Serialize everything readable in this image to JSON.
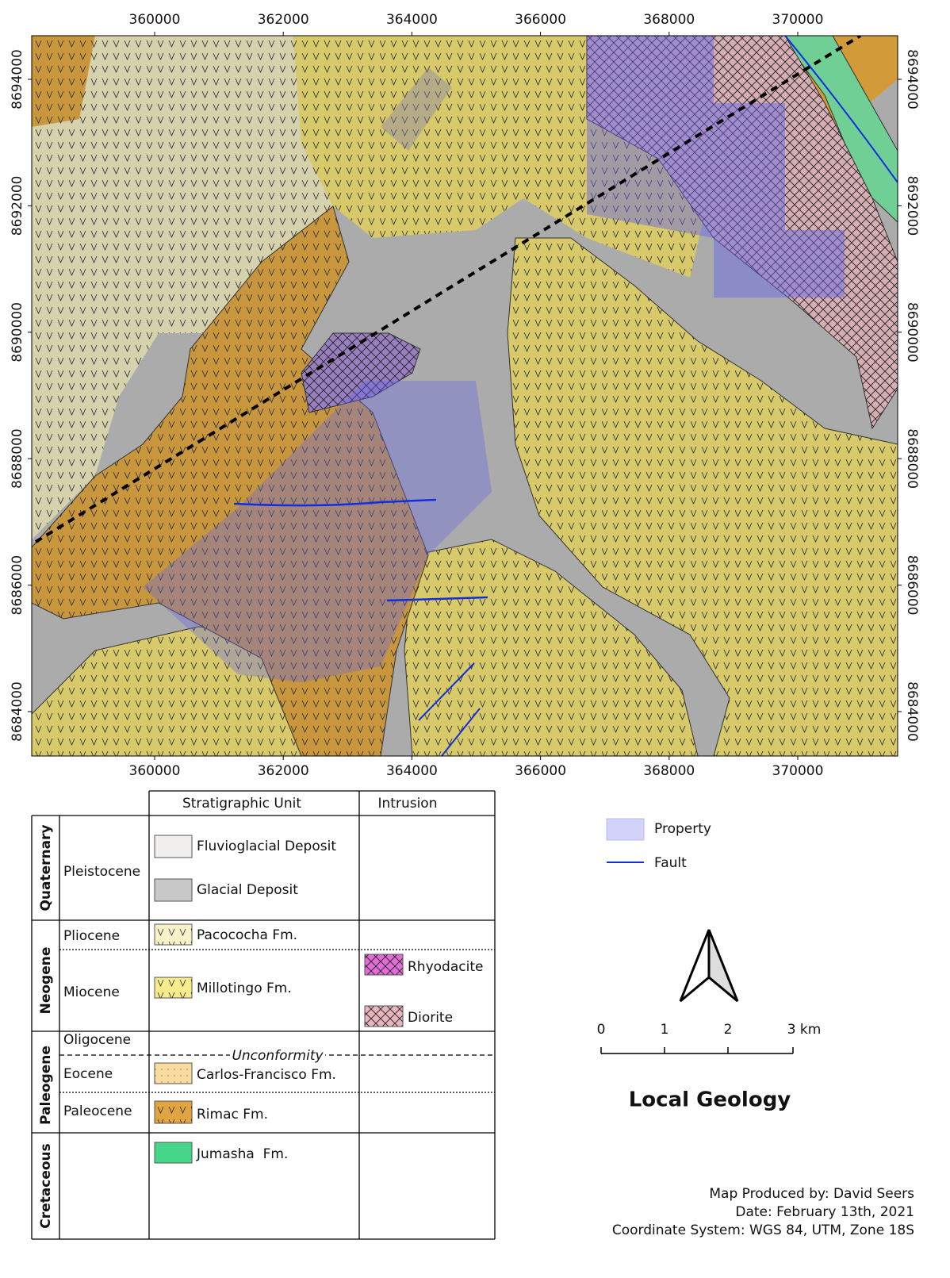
{
  "map": {
    "x_ticks": [
      360000,
      362000,
      364000,
      366000,
      368000,
      370000
    ],
    "y_ticks": [
      8684000,
      8686000,
      8688000,
      8690000,
      8692000,
      8694000
    ]
  },
  "legend": {
    "header": {
      "unit": "Stratigraphic Unit",
      "intrusion": "Intrusion"
    },
    "periods": [
      "Quaternary",
      "Neogene",
      "Paleogene",
      "Cretaceous"
    ],
    "epochs": [
      "Pleistocene",
      "Pliocene",
      "Miocene",
      "Oligocene",
      "Eocene",
      "Paleocene"
    ],
    "units": [
      "Fluvioglacial Deposit",
      "Glacial Deposit",
      "Pacococha Fm.",
      "Millotingo Fm.",
      "Carlos-Francisco Fm.",
      "Rimac Fm.",
      "Jumasha  Fm."
    ],
    "intrusions": [
      "Rhyodacite",
      "Diorite"
    ],
    "unconformity": "Unconformity",
    "property": "Property",
    "fault": "Fault"
  },
  "scale_bar": {
    "labels": [
      "0",
      "1",
      "2",
      "3 km"
    ]
  },
  "title": "Local Geology",
  "credits": [
    "Map Produced by: David Seers",
    "Date: February 13th, 2021",
    "Coordinate System: WGS 84, UTM, Zone 18S"
  ]
}
